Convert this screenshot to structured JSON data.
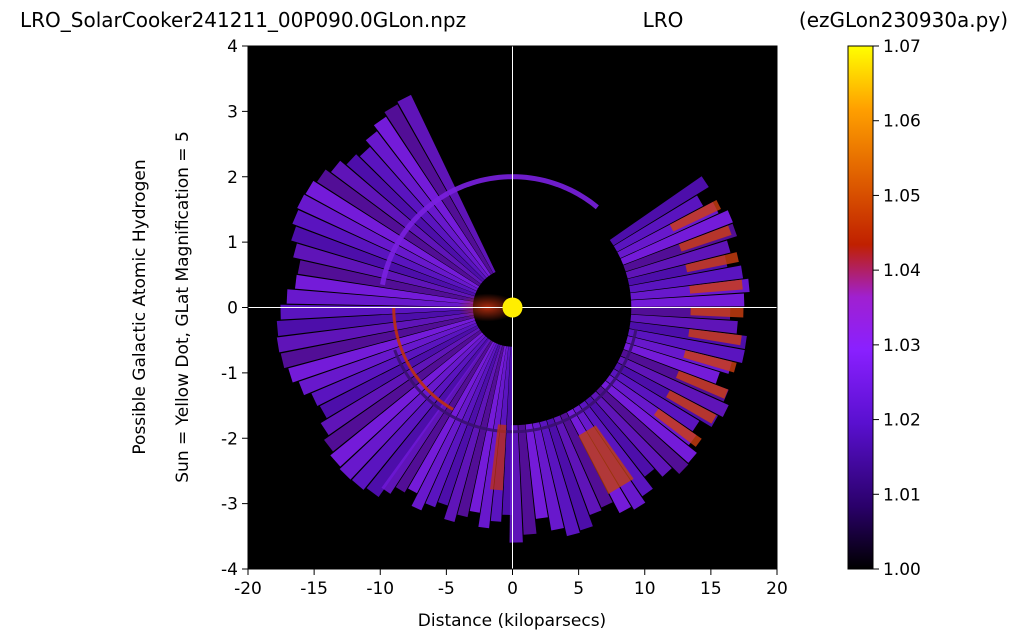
{
  "chart_data": {
    "type": "heatmap",
    "title_left": "LRO_SolarCooker241211_00P090.0GLon.npz",
    "title_center": "LRO",
    "title_right": "(ezGLon230930a.py)",
    "xlabel": "Distance (kiloparsecs)",
    "ylabel_line1": "Possible Galactic Atomic Hydrogen",
    "ylabel_line2": "Sun = Yellow Dot, GLat Magnification = 5",
    "xlim": [
      -20,
      20
    ],
    "ylim": [
      -4,
      4
    ],
    "x_ticks": [
      {
        "value": -20,
        "label": "-20"
      },
      {
        "value": -15,
        "label": "-15"
      },
      {
        "value": -10,
        "label": "-10"
      },
      {
        "value": -5,
        "label": "-5"
      },
      {
        "value": 0,
        "label": "0"
      },
      {
        "value": 5,
        "label": "5"
      },
      {
        "value": 10,
        "label": "10"
      },
      {
        "value": 15,
        "label": "15"
      },
      {
        "value": 20,
        "label": "20"
      }
    ],
    "y_ticks": [
      {
        "value": -4,
        "label": "-4"
      },
      {
        "value": -3,
        "label": "-3"
      },
      {
        "value": -2,
        "label": "-2"
      },
      {
        "value": -1,
        "label": "-1"
      },
      {
        "value": 0,
        "label": "0"
      },
      {
        "value": 1,
        "label": "1"
      },
      {
        "value": 2,
        "label": "2"
      },
      {
        "value": 3,
        "label": "3"
      },
      {
        "value": 4,
        "label": "4"
      }
    ],
    "sun": {
      "x": 0,
      "y": 0,
      "color": "#ffee00"
    },
    "crosshair_color": "#ffffff",
    "background_color": "#000000",
    "colorbar": {
      "min": 1.0,
      "max": 1.07,
      "ticks": [
        {
          "value": 1.0,
          "label": "1.00"
        },
        {
          "value": 1.01,
          "label": "1.01"
        },
        {
          "value": 1.02,
          "label": "1.02"
        },
        {
          "value": 1.03,
          "label": "1.03"
        },
        {
          "value": 1.04,
          "label": "1.04"
        },
        {
          "value": 1.05,
          "label": "1.05"
        },
        {
          "value": 1.06,
          "label": "1.06"
        },
        {
          "value": 1.07,
          "label": "1.07"
        }
      ],
      "colors": [
        "#000000",
        "#2a006a",
        "#5a10d0",
        "#8a20ff",
        "#a020d0",
        "#c02000",
        "#e06000",
        "#ffa000",
        "#ffff00"
      ]
    }
  }
}
